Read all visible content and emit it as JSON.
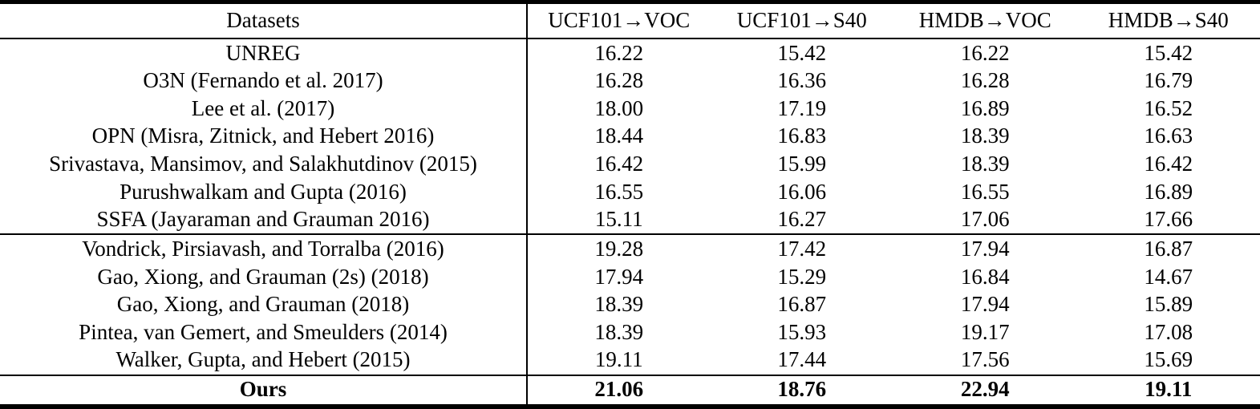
{
  "colors": {
    "text": "#000000",
    "background": "#ffffff",
    "rule": "#000000"
  },
  "table": {
    "columns": [
      "Datasets",
      "UCF101→VOC",
      "UCF101→S40",
      "HMDB→VOC",
      "HMDB→S40"
    ],
    "groups": [
      {
        "rows": [
          {
            "label": "UNREG",
            "values": [
              "16.22",
              "15.42",
              "16.22",
              "15.42"
            ]
          },
          {
            "label": "O3N (Fernando et al. 2017)",
            "values": [
              "16.28",
              "16.36",
              "16.28",
              "16.79"
            ]
          },
          {
            "label": "Lee et al. (2017)",
            "values": [
              "18.00",
              "17.19",
              "16.89",
              "16.52"
            ]
          },
          {
            "label": "OPN (Misra, Zitnick, and Hebert 2016)",
            "values": [
              "18.44",
              "16.83",
              "18.39",
              "16.63"
            ]
          },
          {
            "label": "Srivastava, Mansimov, and Salakhutdinov (2015)",
            "values": [
              "16.42",
              "15.99",
              "18.39",
              "16.42"
            ]
          },
          {
            "label": "Purushwalkam and Gupta (2016)",
            "values": [
              "16.55",
              "16.06",
              "16.55",
              "16.89"
            ]
          },
          {
            "label": "SSFA (Jayaraman and Grauman 2016)",
            "values": [
              "15.11",
              "16.27",
              "17.06",
              "17.66"
            ]
          }
        ]
      },
      {
        "rows": [
          {
            "label": "Vondrick, Pirsiavash, and Torralba (2016)",
            "values": [
              "19.28",
              "17.42",
              "17.94",
              "16.87"
            ]
          },
          {
            "label": "Gao, Xiong, and Grauman (2s) (2018)",
            "values": [
              "17.94",
              "15.29",
              "16.84",
              "14.67"
            ]
          },
          {
            "label": "Gao, Xiong, and Grauman (2018)",
            "values": [
              "18.39",
              "16.87",
              "17.94",
              "15.89"
            ]
          },
          {
            "label": "Pintea, van Gemert, and Smeulders (2014)",
            "values": [
              "18.39",
              "15.93",
              "19.17",
              "17.08"
            ]
          },
          {
            "label": "Walker, Gupta, and Hebert (2015)",
            "values": [
              "19.11",
              "17.44",
              "17.56",
              "15.69"
            ]
          }
        ]
      },
      {
        "rows": [
          {
            "label": "Ours",
            "values": [
              "21.06",
              "18.76",
              "22.94",
              "19.11"
            ],
            "bold": true
          }
        ]
      }
    ]
  }
}
